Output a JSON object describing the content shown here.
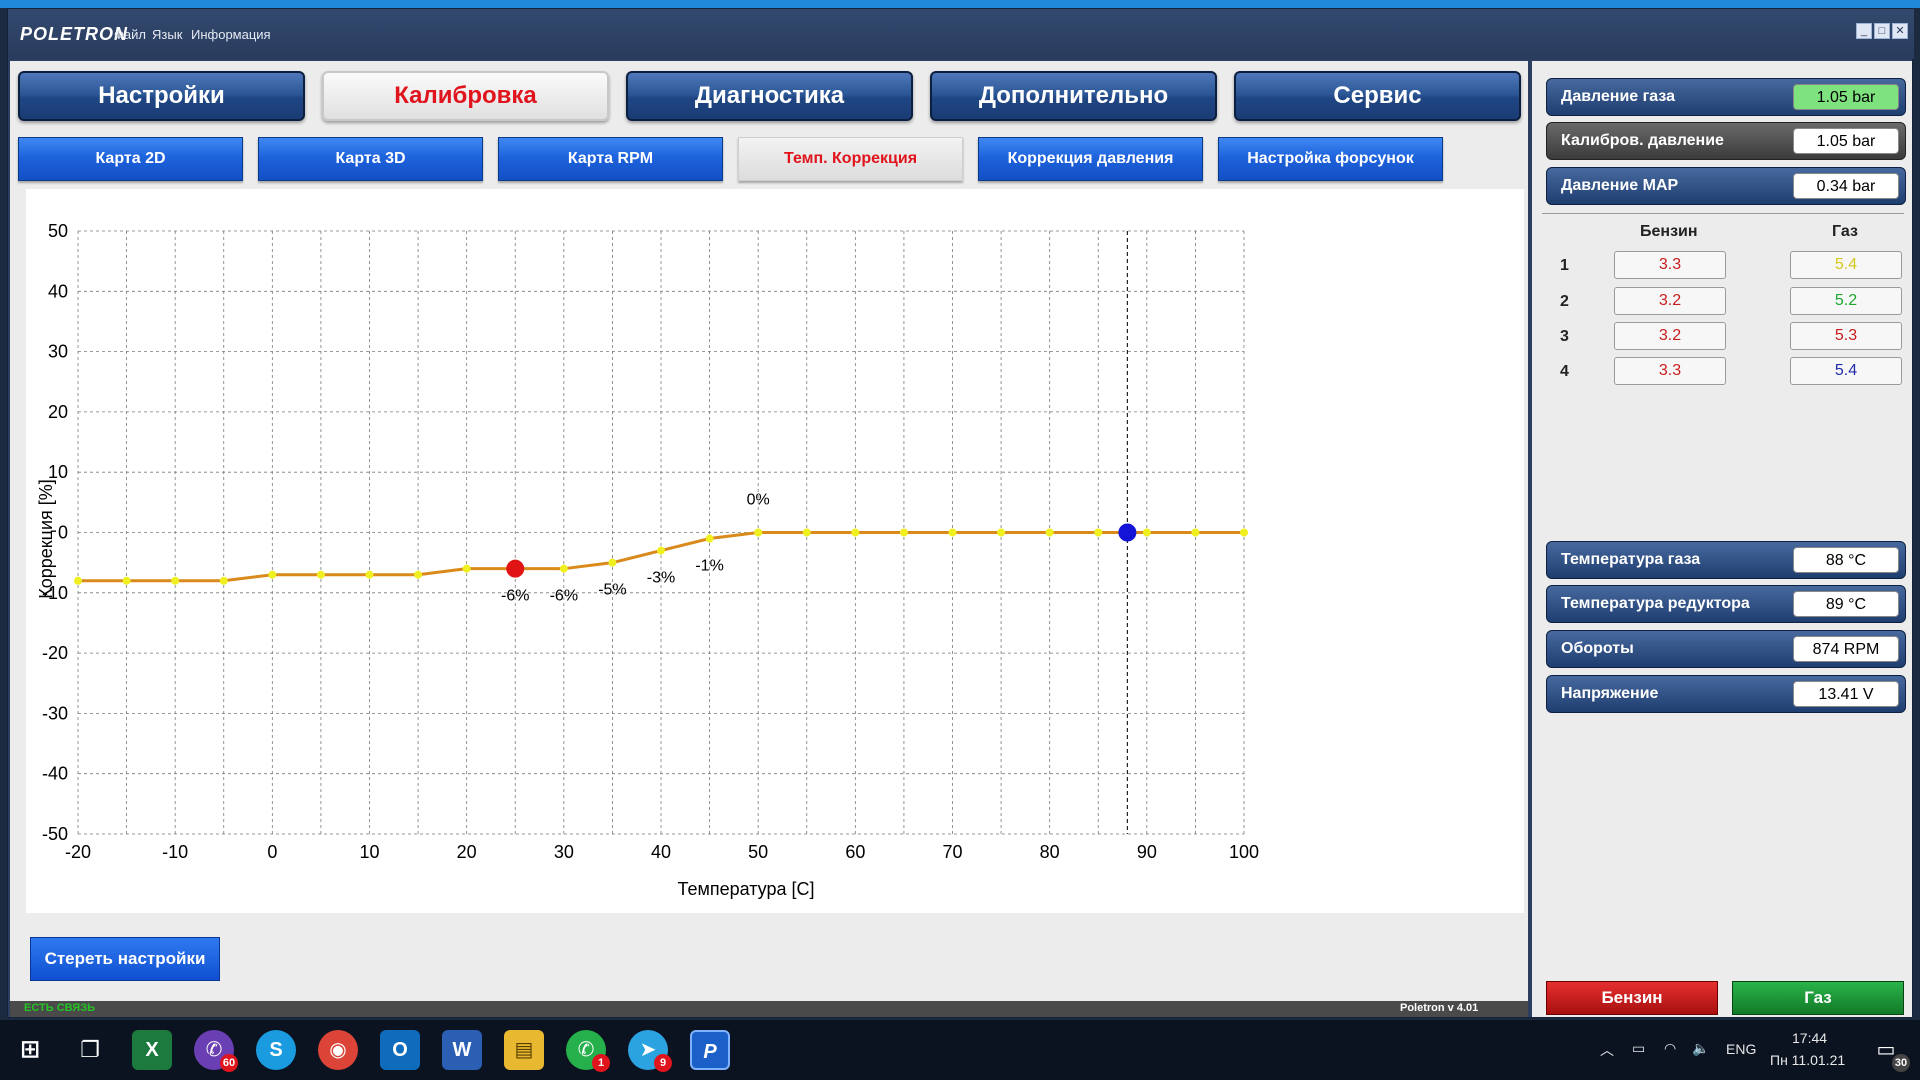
{
  "app": {
    "logo": "POLETRON",
    "menu": [
      "Файл",
      "Язык",
      "Информация"
    ]
  },
  "main_tabs": [
    {
      "label": "Настройки",
      "active": false
    },
    {
      "label": "Калибровка",
      "active": true
    },
    {
      "label": "Диагностика",
      "active": false
    },
    {
      "label": "Дополнительно",
      "active": false
    },
    {
      "label": "Сервис",
      "active": false
    }
  ],
  "sub_tabs": [
    {
      "label": "Карта 2D",
      "active": false
    },
    {
      "label": "Карта 3D",
      "active": false
    },
    {
      "label": "Карта RPM",
      "active": false
    },
    {
      "label": "Темп. Коррекция",
      "active": true
    },
    {
      "label": "Коррекция давления",
      "active": false
    },
    {
      "label": "Настройка форсунок",
      "active": false
    }
  ],
  "chart_data": {
    "type": "line",
    "xlabel": "Температура [C]",
    "ylabel": "Коррекция [%]",
    "xlim": [
      -20,
      100
    ],
    "ylim": [
      -50,
      50
    ],
    "x_ticks": [
      -20,
      -10,
      0,
      10,
      20,
      30,
      40,
      50,
      60,
      70,
      80,
      90,
      100
    ],
    "y_ticks": [
      50,
      40,
      30,
      20,
      10,
      0,
      -10,
      -20,
      -30,
      -40,
      -50
    ],
    "grid": true,
    "x": [
      -20,
      -15,
      -10,
      -5,
      0,
      5,
      10,
      15,
      20,
      25,
      30,
      35,
      40,
      45,
      50,
      55,
      60,
      65,
      70,
      75,
      80,
      85,
      90,
      95,
      100
    ],
    "y": [
      -8,
      -8,
      -8,
      -8,
      -7,
      -7,
      -7,
      -7,
      -6,
      -6,
      -6,
      -5,
      -3,
      -1,
      0,
      0,
      0,
      0,
      0,
      0,
      0,
      0,
      0,
      0,
      0
    ],
    "point_labels": [
      {
        "x": 25,
        "y": -6,
        "text": "-6%"
      },
      {
        "x": 30,
        "y": -6,
        "text": "-6%"
      },
      {
        "x": 35,
        "y": -5,
        "text": "-5%"
      },
      {
        "x": 40,
        "y": -3,
        "text": "-3%"
      },
      {
        "x": 45,
        "y": -1,
        "text": "-1%"
      },
      {
        "x": 50,
        "y": 0,
        "text": "0%"
      }
    ],
    "marker_petrol": {
      "x": 25,
      "y": -6
    },
    "marker_gas": {
      "x": 88,
      "y": 0
    },
    "current_temp_line": 88,
    "line_color": "#d98a1b",
    "point_color": "#f0f020"
  },
  "clear_button": "Стереть настройки",
  "status": {
    "connection": "ЕСТЬ СВЯЗЬ",
    "version": "Poletron v 4.01"
  },
  "gauges_top": [
    {
      "label": "Давление газа",
      "value": "1.05 bar",
      "style": "green"
    },
    {
      "label": "Калибров. давление",
      "value": "1.05 bar",
      "style": "calib"
    },
    {
      "label": "Давление MAP",
      "value": "0.34 bar",
      "style": "normal"
    }
  ],
  "injectors": {
    "headers": [
      "Бензин",
      "Газ"
    ],
    "rows": [
      {
        "n": "1",
        "petrol": "3.3",
        "gas": "5.4",
        "petrol_color": "#c81e1e",
        "gas_color": "#d4c81a"
      },
      {
        "n": "2",
        "petrol": "3.2",
        "gas": "5.2",
        "petrol_color": "#c81e1e",
        "gas_color": "#1ea82e"
      },
      {
        "n": "3",
        "petrol": "3.2",
        "gas": "5.3",
        "petrol_color": "#c81e1e",
        "gas_color": "#c81e1e"
      },
      {
        "n": "4",
        "petrol": "3.3",
        "gas": "5.4",
        "petrol_color": "#c81e1e",
        "gas_color": "#1c2aa8"
      }
    ]
  },
  "gauges_bottom": [
    {
      "label": "Температура газа",
      "value": "88 °C"
    },
    {
      "label": "Температура редуктора",
      "value": "89 °C"
    },
    {
      "label": "Обороты",
      "value": "874 RPM"
    },
    {
      "label": "Напряжение",
      "value": "13.41 V"
    }
  ],
  "mode_buttons": {
    "petrol": "Бензин",
    "gas": "Газ"
  },
  "taskbar": {
    "lang": "ENG",
    "time": "17:44",
    "date": "Пн 11.01.21",
    "notifications": "30",
    "badges": {
      "viber": "60",
      "whatsapp": "1",
      "telegram": "9"
    }
  }
}
